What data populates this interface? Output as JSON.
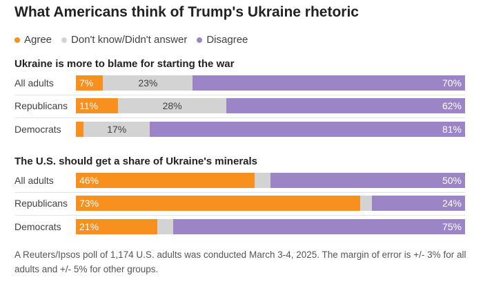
{
  "chart_data": {
    "type": "bar",
    "orientation": "horizontal",
    "stacked": true,
    "title": "What Americans think of Trump's Ukraine rhetoric",
    "legend": [
      {
        "name": "Agree",
        "color": "#f7901e"
      },
      {
        "name": "Don't know/Didn't answer",
        "color": "#d3d3d3"
      },
      {
        "name": "Disagree",
        "color": "#9b85c7"
      }
    ],
    "panels": [
      {
        "title": "Ukraine is more to blame for starting the war",
        "categories": [
          "All adults",
          "Republicans",
          "Democrats"
        ],
        "series": [
          {
            "name": "Agree",
            "values": [
              7,
              11,
              2
            ],
            "labels": [
              "7%",
              "11%",
              ""
            ]
          },
          {
            "name": "Don't know/Didn't answer",
            "values": [
              23,
              28,
              17
            ],
            "labels": [
              "23%",
              "28%",
              "17%"
            ]
          },
          {
            "name": "Disagree",
            "values": [
              70,
              62,
              81
            ],
            "labels": [
              "70%",
              "62%",
              "81%"
            ]
          }
        ]
      },
      {
        "title": "The U.S. should get a share of Ukraine's minerals",
        "categories": [
          "All adults",
          "Republicans",
          "Democrats"
        ],
        "series": [
          {
            "name": "Agree",
            "values": [
              46,
              73,
              21
            ],
            "labels": [
              "46%",
              "73%",
              "21%"
            ]
          },
          {
            "name": "Don't know/Didn't answer",
            "values": [
              4,
              3,
              4
            ],
            "labels": [
              "",
              "",
              ""
            ]
          },
          {
            "name": "Disagree",
            "values": [
              50,
              24,
              75
            ],
            "labels": [
              "50%",
              "24%",
              "75%"
            ]
          }
        ]
      }
    ],
    "note": "A Reuters/Ipsos poll of 1,174 U.S. adults was conducted March 3-4, 2025. The margin of error is +/- 3% for all adults and +/- 5% for other groups."
  }
}
